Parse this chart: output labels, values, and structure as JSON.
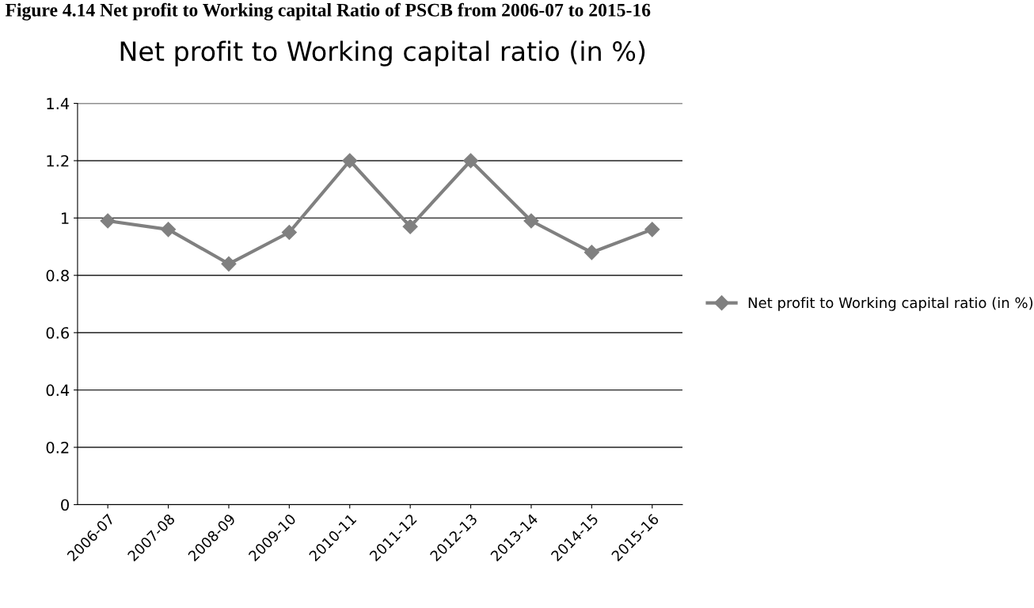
{
  "chart_data": {
    "type": "line",
    "title": "Net profit to Working capital ratio (in %)",
    "annotations": [
      "Figure 4.14 Net profit to Working capital Ratio of PSCB from 2006-07 to 2015-16"
    ],
    "categories": [
      "2006-07",
      "2007-08",
      "2008-09",
      "2009-10",
      "2010-11",
      "2011-12",
      "2012-13",
      "2013-14",
      "2014-15",
      "2015-16"
    ],
    "series": [
      {
        "name": "Net profit to Working capital ratio (in %)",
        "color": "#808080",
        "values": [
          0.99,
          0.96,
          0.84,
          0.95,
          1.2,
          0.97,
          1.2,
          0.99,
          0.88,
          0.96
        ]
      }
    ],
    "ylim": [
      0,
      1.4
    ],
    "yticks": [
      0,
      {
        "value": 0.2,
        "label": "0.2"
      },
      {
        "value": 0.4,
        "label": "0.4"
      },
      {
        "value": 0.6,
        "label": "0.6"
      },
      {
        "value": 0.8,
        "label": "0.8"
      },
      1,
      {
        "value": 1.2,
        "label": "1.2"
      },
      {
        "value": 1.4,
        "label": "1.4"
      }
    ],
    "grid": "y",
    "legend": "right",
    "marker": "diamond",
    "line_style": "solid"
  }
}
